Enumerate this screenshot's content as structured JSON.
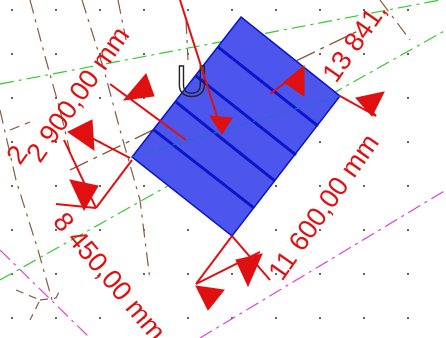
{
  "colors": {
    "dimension": "#e01010",
    "block_fill": "#4c56ec",
    "block_stroke": "#0a14c8",
    "guide_green": "#33cc33",
    "guide_magenta": "#e040e0",
    "guide_brown": "#8a5a3c",
    "background": "#ffffff"
  },
  "view_label": "U",
  "dimensions": {
    "top_width": "2 900,00 mm",
    "top_right": "13 841,",
    "left_height": "2",
    "left_lower": "8 450,00 mm",
    "right_length": "11 600,00 mm"
  }
}
